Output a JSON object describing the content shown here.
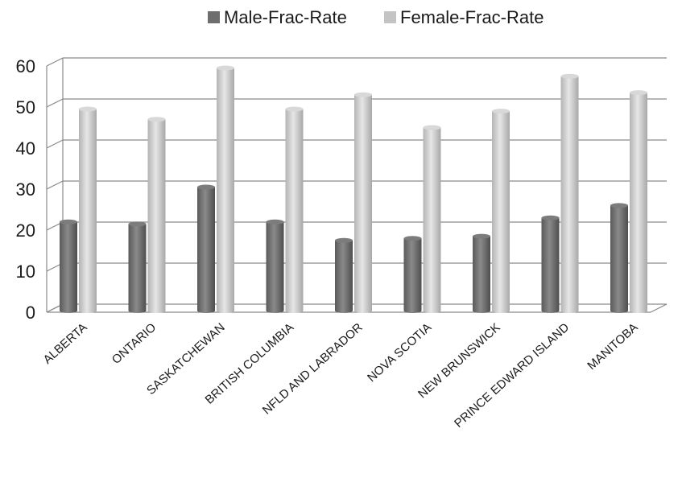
{
  "chart_data": {
    "type": "bar",
    "title": "",
    "xlabel": "",
    "ylabel": "",
    "ylim": [
      0,
      60
    ],
    "yticks": [
      0,
      10,
      20,
      30,
      40,
      50,
      60
    ],
    "grid": true,
    "legend_position": "top-center",
    "categories": [
      "ALBERTA",
      "ONTARIO",
      "SASKATCHEWAN",
      "BRITISH COLUMBIA",
      "NFLD AND LABRADOR",
      "NOVA SCOTIA",
      "NEW BRUNSWICK",
      "PRINCE EDWARD ISLAND",
      "MANITOBA"
    ],
    "series": [
      {
        "name": "Male-Frac-Rate",
        "color": "#6e6e6e",
        "values": [
          22,
          21.5,
          30.5,
          22,
          17.5,
          18,
          18.5,
          23,
          26
        ]
      },
      {
        "name": "Female-Frac-Rate",
        "color": "#c4c4c4",
        "values": [
          49.5,
          47,
          59.5,
          49.5,
          53,
          45,
          49,
          57.5,
          53.5
        ]
      }
    ]
  }
}
